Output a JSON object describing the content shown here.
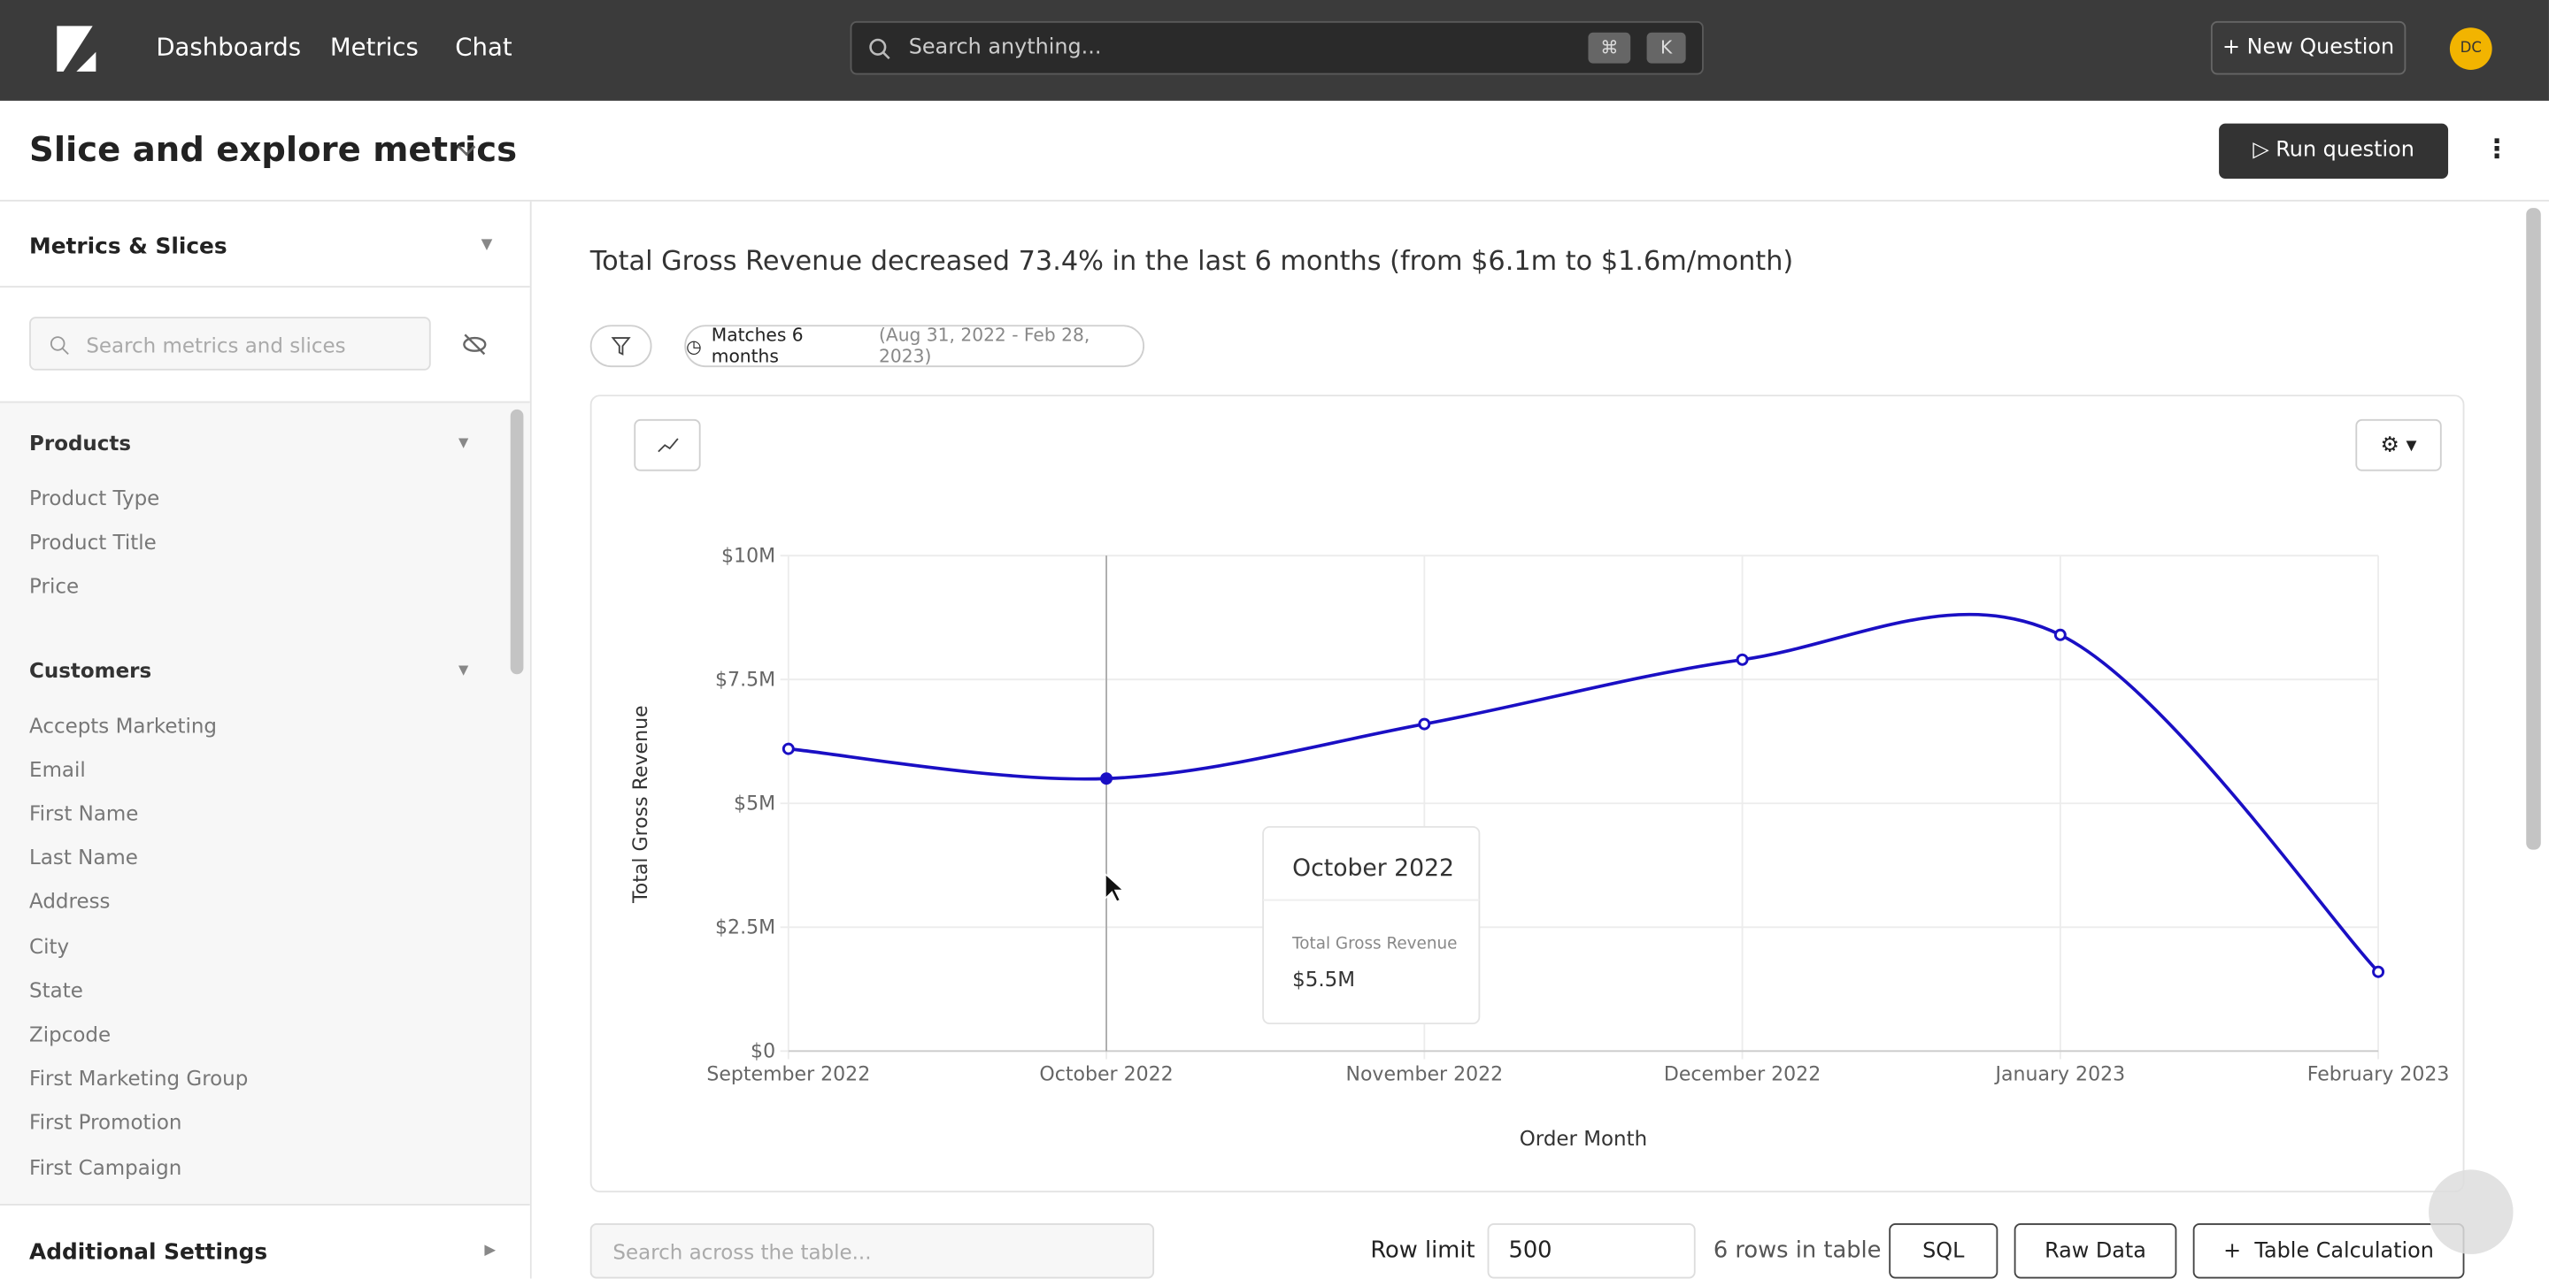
{
  "nav": {
    "links": [
      "Dashboards",
      "Metrics",
      "Chat"
    ],
    "search_placeholder": "Search anything...",
    "shortcut": [
      "⌘",
      "K"
    ],
    "new_question": "New Question",
    "avatar": "DC"
  },
  "header": {
    "title": "Slice and explore metrics",
    "run": "Run question"
  },
  "sidebar": {
    "title": "Metrics & Slices",
    "search_placeholder": "Search metrics and slices",
    "groups": [
      {
        "name": "Products",
        "items": [
          "Product Type",
          "Product Title",
          "Price"
        ]
      },
      {
        "name": "Customers",
        "items": [
          "Accepts Marketing",
          "Email",
          "First Name",
          "Last Name",
          "Address",
          "City",
          "State",
          "Zipcode",
          "First Marketing Group",
          "First Promotion",
          "First Campaign"
        ]
      }
    ],
    "footer": "Additional Settings"
  },
  "headline": "Total Gross Revenue decreased 73.4% in the last 6 months (from $6.1m to $1.6m/month)",
  "date_chip": {
    "label": "Matches 6 months",
    "range": "(Aug 31, 2022 - Feb 28, 2023)"
  },
  "chart_data": {
    "type": "line",
    "x_label": "Order Month",
    "y_label": "Total Gross Revenue",
    "categories": [
      "September 2022",
      "October 2022",
      "November 2022",
      "December 2022",
      "January 2023",
      "February 2023"
    ],
    "series": [
      {
        "name": "Total Gross Revenue",
        "color": "#1a0fc4",
        "values": [
          6100000,
          5500000,
          6600000,
          7900000,
          8400000,
          1600000
        ],
        "value_labels": [
          null,
          "$5.5M",
          null,
          null,
          null,
          null
        ]
      }
    ],
    "ylim": [
      0,
      10000000
    ],
    "yticks": [
      {
        "value": 0,
        "label": "$0"
      },
      {
        "value": 2500000,
        "label": "$2.5M"
      },
      {
        "value": 5000000,
        "label": "$5M"
      },
      {
        "value": 7500000,
        "label": "$7.5M"
      },
      {
        "value": 10000000,
        "label": "$10M"
      }
    ],
    "grid": true
  },
  "table_bar": {
    "search_placeholder": "Search across the table...",
    "row_limit_label": "Row limit",
    "row_limit": "500",
    "rows_info": "6 rows in table",
    "buttons": [
      "SQL",
      "Raw Data",
      "Table Calculation"
    ]
  }
}
